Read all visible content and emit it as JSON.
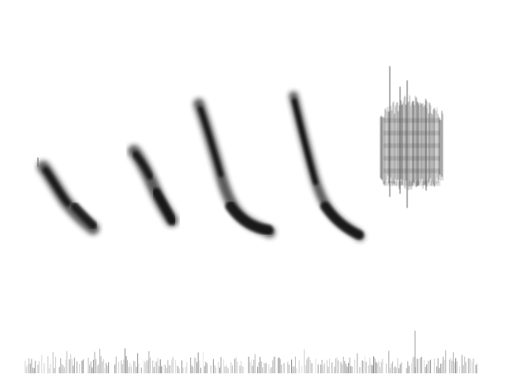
{
  "image": {
    "kind": "spectrogram",
    "background_color": "#ffffff",
    "ink_color": "#111111",
    "syllables": [
      {
        "name": "syllable-1",
        "shape": "descending-sweep"
      },
      {
        "name": "syllable-2",
        "shape": "descending-sweep"
      },
      {
        "name": "syllable-3",
        "shape": "descending-sweep-with-tail"
      },
      {
        "name": "syllable-4",
        "shape": "descending-sweep-with-tail"
      },
      {
        "name": "syllable-5",
        "shape": "broadband-noise-burst"
      }
    ],
    "noise_floor": {
      "name": "noise-floor",
      "shape": "low-band-noise"
    }
  }
}
